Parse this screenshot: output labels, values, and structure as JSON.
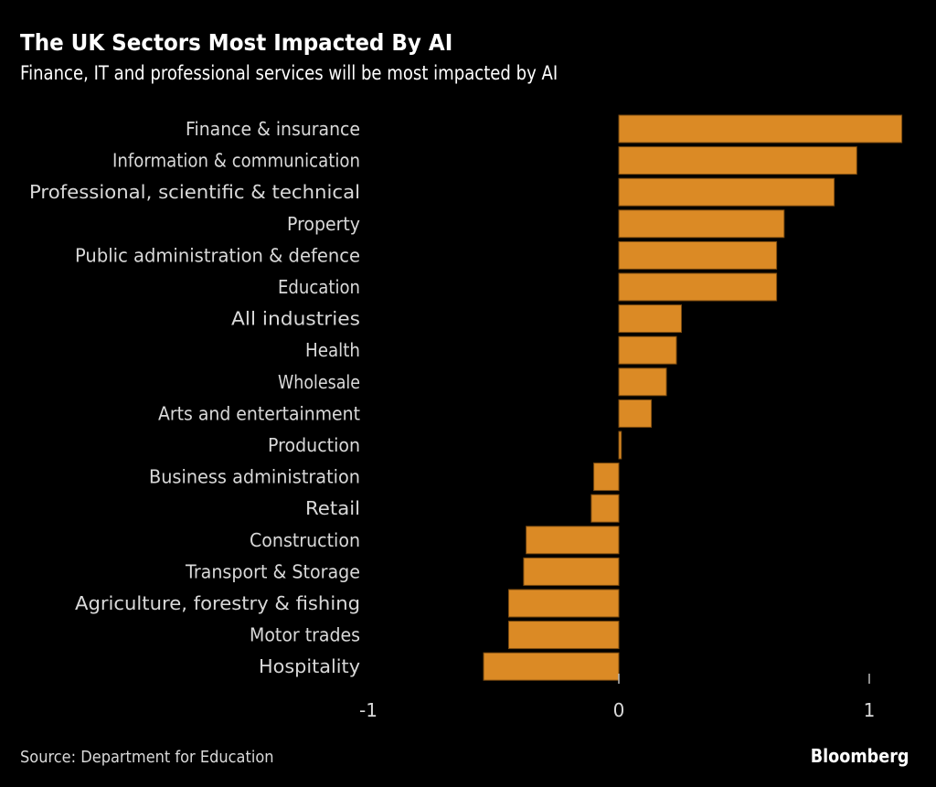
{
  "chart_data": {
    "type": "bar",
    "orientation": "horizontal",
    "title": "The UK Sectors Most Impacted By AI",
    "subtitle": "Finance, IT and professional services will be most impacted by AI",
    "categories": [
      "Finance & insurance",
      "Information & communication",
      "Professional, scientific & technical",
      "Property",
      "Public administration & defence",
      "Education",
      "All industries",
      "Health",
      "Wholesale",
      "Arts and entertainment",
      "Production",
      "Business administration",
      "Retail",
      "Construction",
      "Transport & Storage",
      "Agriculture, forestry & fishing",
      "Motor trades",
      "Hospitality"
    ],
    "values": [
      1.13,
      0.95,
      0.86,
      0.66,
      0.63,
      0.63,
      0.25,
      0.23,
      0.19,
      0.13,
      0.01,
      -0.1,
      -0.11,
      -0.37,
      -0.38,
      -0.44,
      -0.44,
      -0.54
    ],
    "xlim": [
      -1,
      1.15
    ],
    "xticks": [
      -1,
      0,
      1
    ],
    "xtick_labels": [
      "-1",
      "0",
      "1"
    ],
    "xlabel": "",
    "ylabel": "",
    "grid": false,
    "legend": "none",
    "bar_color": "#db8a25",
    "bar_edge_color": "#7a4a10"
  },
  "footer": {
    "source": "Source: Department for Education",
    "brand": "Bloomberg"
  }
}
